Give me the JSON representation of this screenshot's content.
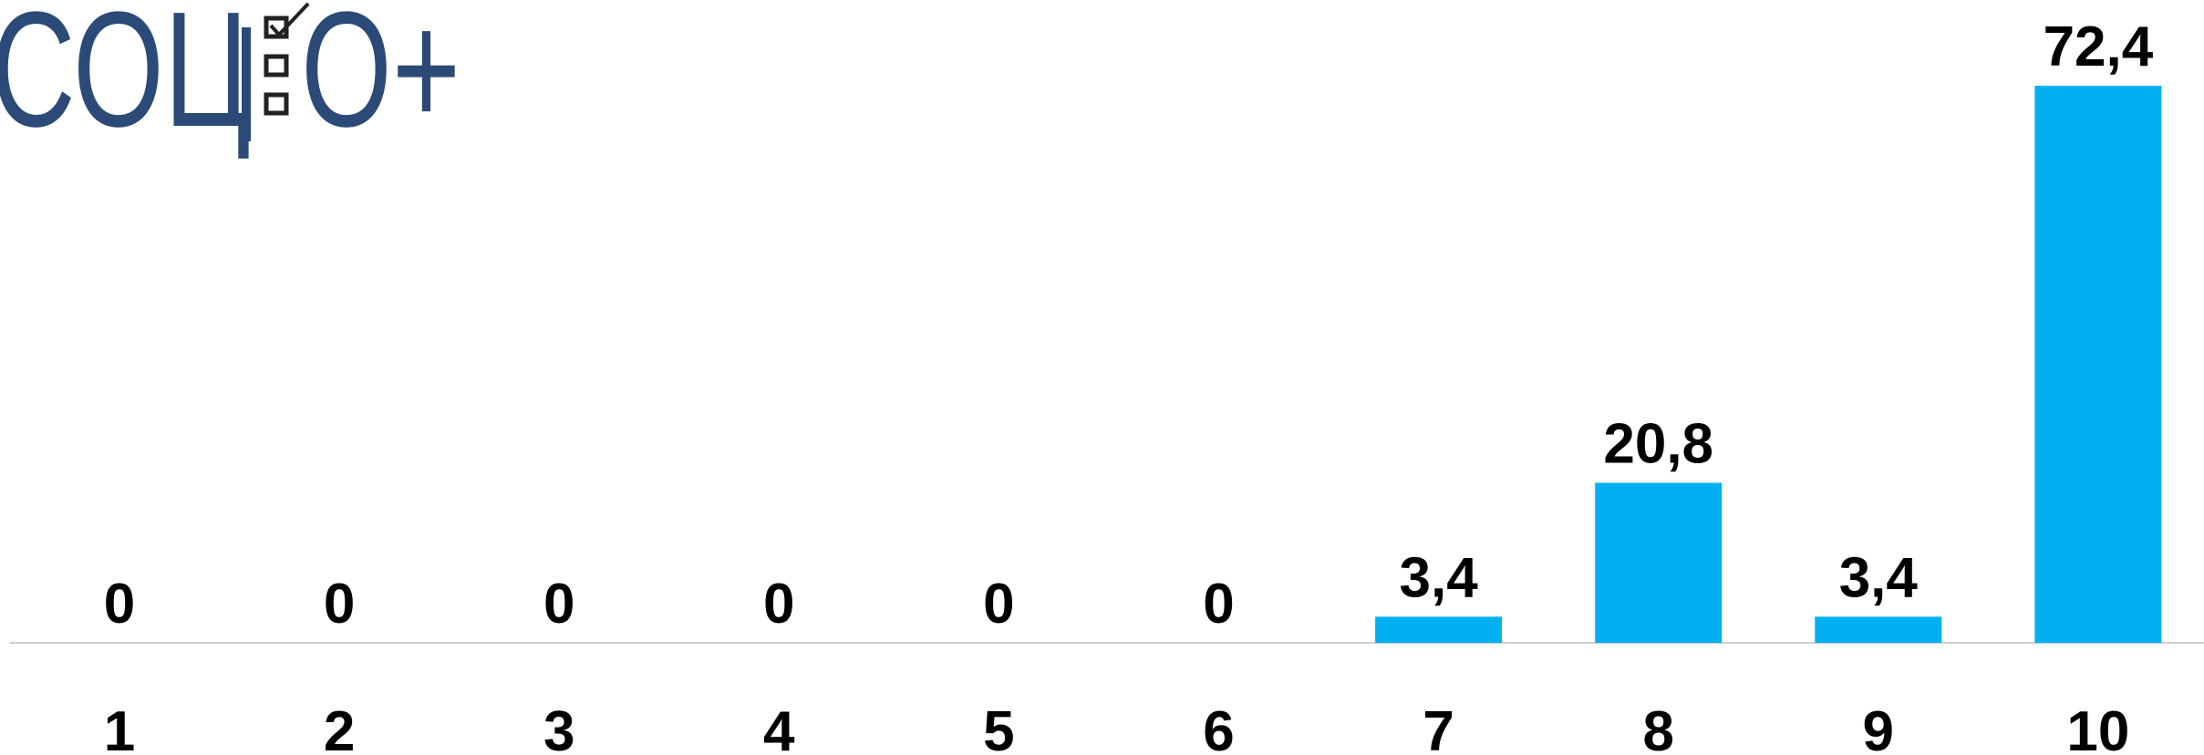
{
  "chart_data": {
    "type": "bar",
    "logo": [
      "СОЦ",
      "О+"
    ],
    "categories": [
      "1",
      "2",
      "3",
      "4",
      "5",
      "6",
      "7",
      "8",
      "9",
      "10"
    ],
    "values": [
      0,
      0,
      0,
      0,
      0,
      0,
      3.4,
      20.8,
      3.4,
      72.4
    ],
    "value_labels": [
      "0",
      "0",
      "0",
      "0",
      "0",
      "0",
      "3,4",
      "20,8",
      "3,4",
      "72,4"
    ],
    "color": "#00b0f0",
    "ylim": [
      0,
      80
    ]
  }
}
